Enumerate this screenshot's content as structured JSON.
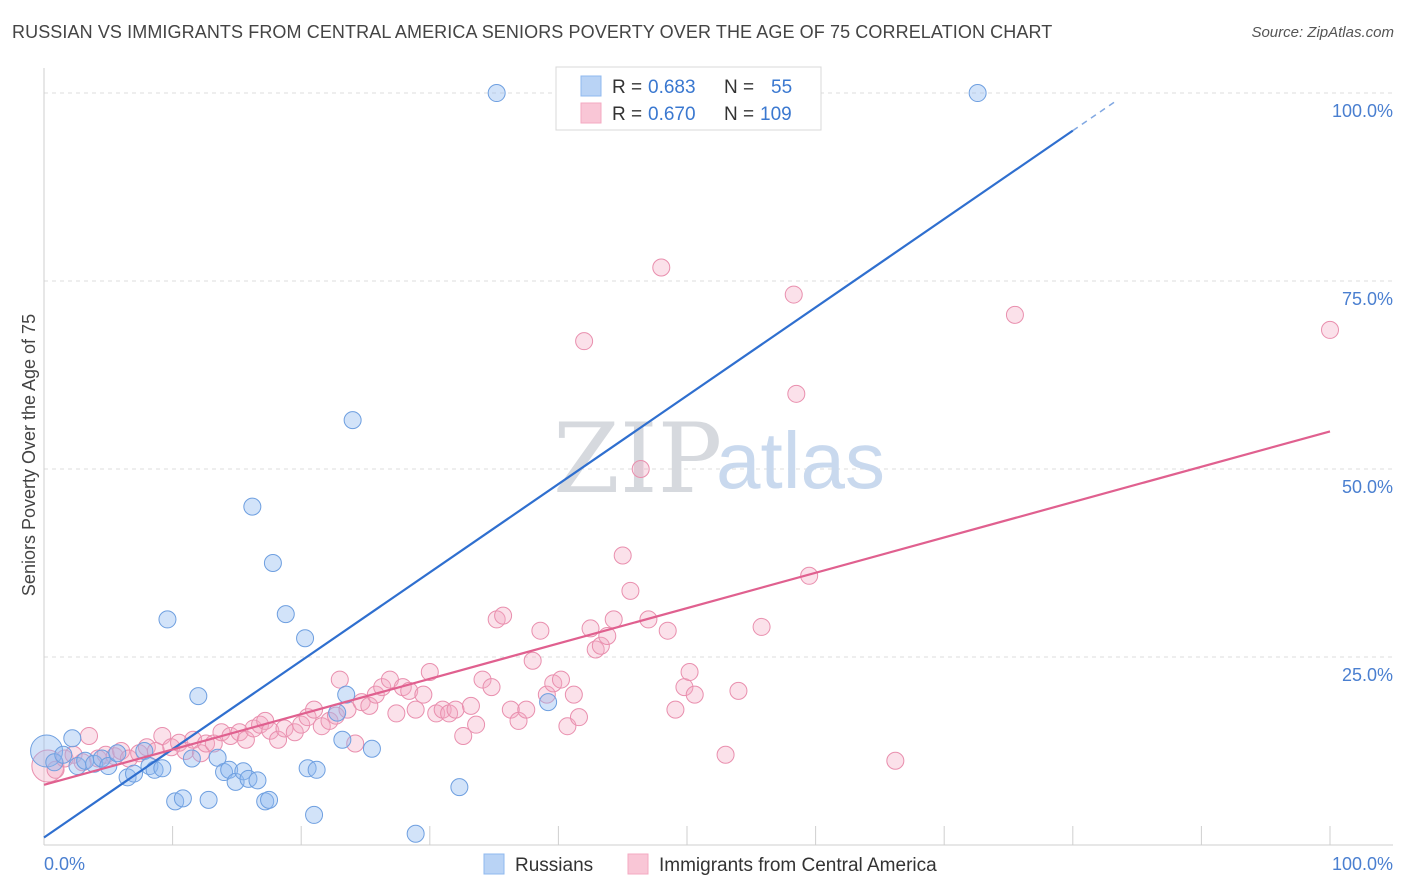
{
  "header": {
    "title": "RUSSIAN VS IMMIGRANTS FROM CENTRAL AMERICA SENIORS POVERTY OVER THE AGE OF 75 CORRELATION CHART",
    "source": "Source: ZipAtlas.com"
  },
  "watermark": {
    "zip": "ZIP",
    "atlas": "atlas"
  },
  "legend": {
    "rows": [
      {
        "r_label": "R = ",
        "r_value": "0.683",
        "n_label": "N = ",
        "n_value": "55"
      },
      {
        "r_label": "R = ",
        "r_value": "0.670",
        "n_label": "N = ",
        "n_value": "109"
      }
    ]
  },
  "chart_data": {
    "type": "scatter",
    "title": "RUSSIAN VS IMMIGRANTS FROM CENTRAL AMERICA SENIORS POVERTY OVER THE AGE OF 75 CORRELATION CHART",
    "xlabel": "",
    "ylabel": "Seniors Poverty Over the Age of 75",
    "xlim": [
      0,
      100
    ],
    "ylim": [
      0,
      102
    ],
    "x_tick_labels": [
      "0.0%",
      "100.0%"
    ],
    "y_ticks": [
      25,
      50,
      75,
      100
    ],
    "y_tick_labels": [
      "25.0%",
      "50.0%",
      "75.0%",
      "100.0%"
    ],
    "grid": true,
    "legend_position": "top-center",
    "colors": {
      "russians": "#8fb8ef",
      "immigrants": "#f4a9c2",
      "russians_line": "#2f6fcf",
      "immigrants_line": "#e0608f"
    },
    "series": [
      {
        "name": "Russians",
        "R": 0.683,
        "N": 55,
        "trend": {
          "x": [
            0,
            80
          ],
          "y": [
            1,
            95
          ]
        },
        "points": [
          [
            0.2,
            12.5
          ],
          [
            0.8,
            11
          ],
          [
            1.5,
            12
          ],
          [
            2.2,
            14.2
          ],
          [
            2.6,
            10.5
          ],
          [
            3.2,
            11.2
          ],
          [
            3.9,
            10.8
          ],
          [
            4.5,
            11.5
          ],
          [
            5.0,
            10.5
          ],
          [
            5.7,
            12.2
          ],
          [
            6.5,
            9
          ],
          [
            7.0,
            9.5
          ],
          [
            7.8,
            12.5
          ],
          [
            8.2,
            10.5
          ],
          [
            8.6,
            10
          ],
          [
            9.2,
            10.2
          ],
          [
            9.6,
            30
          ],
          [
            10.2,
            5.8
          ],
          [
            10.8,
            6.2
          ],
          [
            11.5,
            11.5
          ],
          [
            12.0,
            19.8
          ],
          [
            12.8,
            6
          ],
          [
            13.5,
            11.6
          ],
          [
            14.0,
            9.7
          ],
          [
            14.4,
            10
          ],
          [
            14.9,
            8.4
          ],
          [
            15.5,
            9.8
          ],
          [
            15.9,
            8.8
          ],
          [
            16.2,
            45
          ],
          [
            16.6,
            8.6
          ],
          [
            17.2,
            5.8
          ],
          [
            17.5,
            6
          ],
          [
            17.8,
            37.5
          ],
          [
            18.8,
            30.7
          ],
          [
            20.3,
            27.5
          ],
          [
            20.5,
            10.2
          ],
          [
            21.2,
            10
          ],
          [
            21.0,
            4
          ],
          [
            22.8,
            17.6
          ],
          [
            23.2,
            14
          ],
          [
            23.5,
            20
          ],
          [
            24.0,
            56.5
          ],
          [
            25.5,
            12.8
          ],
          [
            28.9,
            1.5
          ],
          [
            32.3,
            7.7
          ],
          [
            35.2,
            100
          ],
          [
            39.2,
            19
          ],
          [
            72.6,
            100
          ]
        ]
      },
      {
        "name": "Immigrants from Central America",
        "R": 0.67,
        "N": 109,
        "trend": {
          "x": [
            0,
            100
          ],
          "y": [
            8,
            55
          ]
        },
        "points": [
          [
            0.3,
            10.5
          ],
          [
            0.9,
            10
          ],
          [
            1.6,
            11.5
          ],
          [
            2.3,
            12
          ],
          [
            3.0,
            11
          ],
          [
            3.5,
            14.5
          ],
          [
            4.2,
            11.5
          ],
          [
            4.8,
            12
          ],
          [
            5.5,
            11.8
          ],
          [
            6.0,
            12.5
          ],
          [
            6.6,
            11.5
          ],
          [
            7.4,
            12.2
          ],
          [
            8.0,
            13
          ],
          [
            8.7,
            12.5
          ],
          [
            9.2,
            14.5
          ],
          [
            9.9,
            13
          ],
          [
            10.5,
            13.6
          ],
          [
            11.0,
            12.5
          ],
          [
            11.6,
            14
          ],
          [
            12.2,
            12.2
          ],
          [
            12.6,
            13.5
          ],
          [
            13.2,
            13.5
          ],
          [
            13.8,
            15
          ],
          [
            14.5,
            14.5
          ],
          [
            15.2,
            15
          ],
          [
            15.7,
            14
          ],
          [
            16.3,
            15.5
          ],
          [
            16.8,
            16
          ],
          [
            17.2,
            16.5
          ],
          [
            17.6,
            15.2
          ],
          [
            18.2,
            14
          ],
          [
            18.7,
            15.5
          ],
          [
            19.5,
            15
          ],
          [
            20.0,
            16
          ],
          [
            20.5,
            17
          ],
          [
            21.0,
            18
          ],
          [
            21.6,
            15.8
          ],
          [
            22.2,
            16.5
          ],
          [
            22.7,
            17.2
          ],
          [
            23.0,
            22
          ],
          [
            23.6,
            18
          ],
          [
            24.2,
            13.5
          ],
          [
            24.7,
            19
          ],
          [
            25.3,
            18.5
          ],
          [
            25.8,
            20
          ],
          [
            26.3,
            21
          ],
          [
            26.9,
            22
          ],
          [
            27.4,
            17.5
          ],
          [
            27.9,
            21
          ],
          [
            28.4,
            20.5
          ],
          [
            28.9,
            18
          ],
          [
            29.5,
            20
          ],
          [
            30.0,
            23
          ],
          [
            30.5,
            17.5
          ],
          [
            31.0,
            18
          ],
          [
            31.5,
            17.5
          ],
          [
            32.0,
            18
          ],
          [
            32.6,
            14.5
          ],
          [
            33.2,
            18.5
          ],
          [
            33.6,
            16
          ],
          [
            34.1,
            22
          ],
          [
            34.8,
            21
          ],
          [
            35.2,
            30
          ],
          [
            35.7,
            30.5
          ],
          [
            36.3,
            18
          ],
          [
            36.9,
            16.5
          ],
          [
            37.5,
            18
          ],
          [
            38.0,
            24.5
          ],
          [
            38.6,
            28.5
          ],
          [
            39.1,
            20
          ],
          [
            39.6,
            21.5
          ],
          [
            40.2,
            22
          ],
          [
            40.7,
            15.8
          ],
          [
            41.2,
            20
          ],
          [
            41.6,
            17
          ],
          [
            42.0,
            67
          ],
          [
            42.5,
            28.8
          ],
          [
            42.9,
            26
          ],
          [
            43.3,
            26.5
          ],
          [
            43.8,
            27.8
          ],
          [
            44.3,
            30
          ],
          [
            45.0,
            38.5
          ],
          [
            45.6,
            33.8
          ],
          [
            46.4,
            50
          ],
          [
            47.0,
            30
          ],
          [
            48.0,
            76.8
          ],
          [
            48.5,
            28.5
          ],
          [
            49.1,
            18
          ],
          [
            49.8,
            21
          ],
          [
            50.2,
            23
          ],
          [
            50.6,
            20
          ],
          [
            53.0,
            12
          ],
          [
            54.0,
            20.5
          ],
          [
            55.8,
            29
          ],
          [
            58.3,
            73.2
          ],
          [
            58.5,
            60
          ],
          [
            59.5,
            35.8
          ],
          [
            66.2,
            11.2
          ],
          [
            75.5,
            70.5
          ],
          [
            100,
            68.5
          ]
        ]
      }
    ]
  },
  "bottom_legend": [
    {
      "label": "Russians"
    },
    {
      "label": "Immigrants from Central America"
    }
  ]
}
